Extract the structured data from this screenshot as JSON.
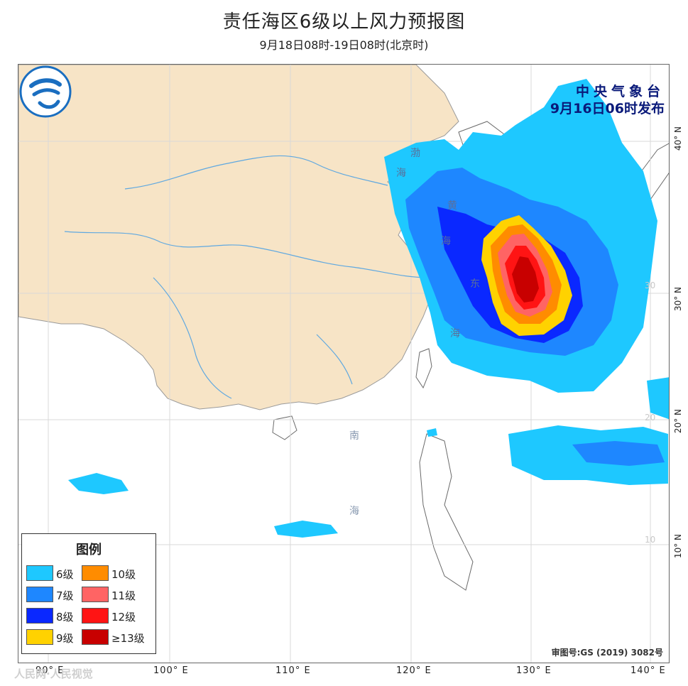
{
  "title": "责任海区6级以上风力预报图",
  "subtitle": "9月18日08时-19日08时(北京时)",
  "issuer": {
    "agency": "中央气象台",
    "issued_time": "9月16日06时发布"
  },
  "legend": {
    "title": "图例",
    "items": [
      {
        "label": "6级",
        "color": "#1ec8ff"
      },
      {
        "label": "10级",
        "color": "#ff8c00"
      },
      {
        "label": "7级",
        "color": "#1e87ff"
      },
      {
        "label": "11级",
        "color": "#ff6464"
      },
      {
        "label": "8级",
        "color": "#0a28ff"
      },
      {
        "label": "12级",
        "color": "#ff1414"
      },
      {
        "label": "9级",
        "color": "#ffd200"
      },
      {
        "label": "≥13级",
        "color": "#c80000"
      }
    ]
  },
  "sea_labels": {
    "bohai_1": "渤",
    "bohai_2": "海",
    "yellow_1": "黄",
    "yellow_2": "海",
    "east_1": "东",
    "east_2": "海",
    "south_1": "南",
    "south_2": "海"
  },
  "grid_numbers": {
    "lat30": "30",
    "lat20": "20",
    "lat10": "10"
  },
  "lon_labels": [
    "90° E",
    "100° E",
    "110° E",
    "120° E",
    "130° E",
    "140° E"
  ],
  "lat_labels": [
    "40° N",
    "30° N",
    "20° N",
    "10° N"
  ],
  "review_number": "审图号:GS (2019) 3082号",
  "watermark": "人民网·人民视觉",
  "colors": {
    "land": "#f7e4c6",
    "sea": "#ffffff",
    "border": "#7a7a7a",
    "river": "#5fa8e0"
  }
}
